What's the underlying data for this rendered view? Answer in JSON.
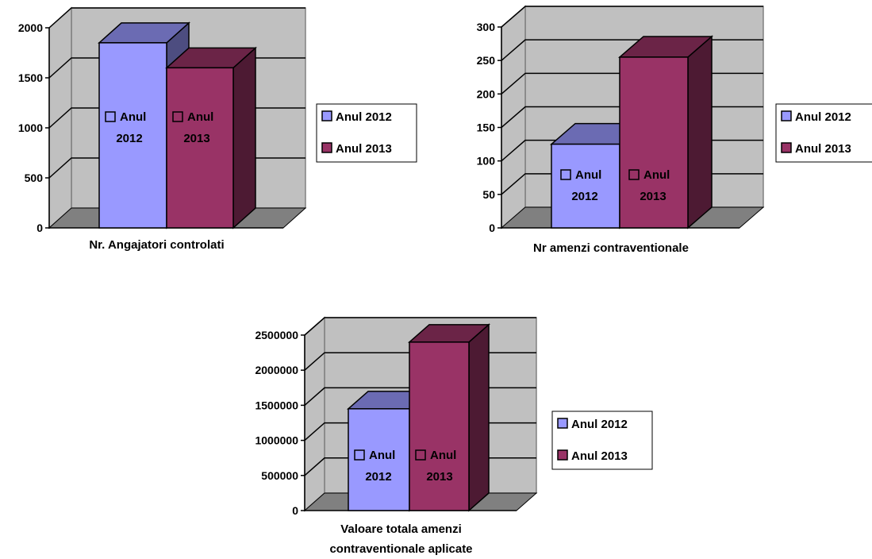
{
  "chart_data": [
    {
      "type": "bar",
      "title": "",
      "xlabel": "Nr. Angajatori controlati",
      "ylabel": "",
      "ylim": [
        0,
        2000
      ],
      "yticks": [
        "0",
        "500",
        "1000",
        "1500",
        "2000"
      ],
      "grid": true,
      "legend_position": "right",
      "series": [
        {
          "name": "Anul 2012",
          "values": [
            1850
          ],
          "color": "#9999ff",
          "label": "Anul 2012"
        },
        {
          "name": "Anul 2013",
          "values": [
            1600
          ],
          "color": "#993366",
          "label": "Anul 2013"
        }
      ]
    },
    {
      "type": "bar",
      "title": "",
      "xlabel": "Nr amenzi contraventionale",
      "ylabel": "",
      "ylim": [
        0,
        300
      ],
      "yticks": [
        "0",
        "50",
        "100",
        "150",
        "200",
        "250",
        "300"
      ],
      "grid": true,
      "legend_position": "right",
      "series": [
        {
          "name": "Anul 2012",
          "values": [
            125
          ],
          "color": "#9999ff",
          "label": "Anul 2012"
        },
        {
          "name": "Anul 2013",
          "values": [
            255
          ],
          "color": "#993366",
          "label": "Anul 2013"
        }
      ]
    },
    {
      "type": "bar",
      "title": "",
      "xlabel": "Valoare totala amenzi contraventionale aplicate",
      "ylabel": "",
      "ylim": [
        0,
        2500000
      ],
      "yticks": [
        "0",
        "500000",
        "1000000",
        "1500000",
        "2000000",
        "2500000"
      ],
      "grid": true,
      "legend_position": "right",
      "series": [
        {
          "name": "Anul 2012",
          "values": [
            1450000
          ],
          "color": "#9999ff",
          "label": "Anul 2012"
        },
        {
          "name": "Anul 2013",
          "values": [
            2400000
          ],
          "color": "#993366",
          "label": "Anul 2013"
        }
      ]
    }
  ]
}
